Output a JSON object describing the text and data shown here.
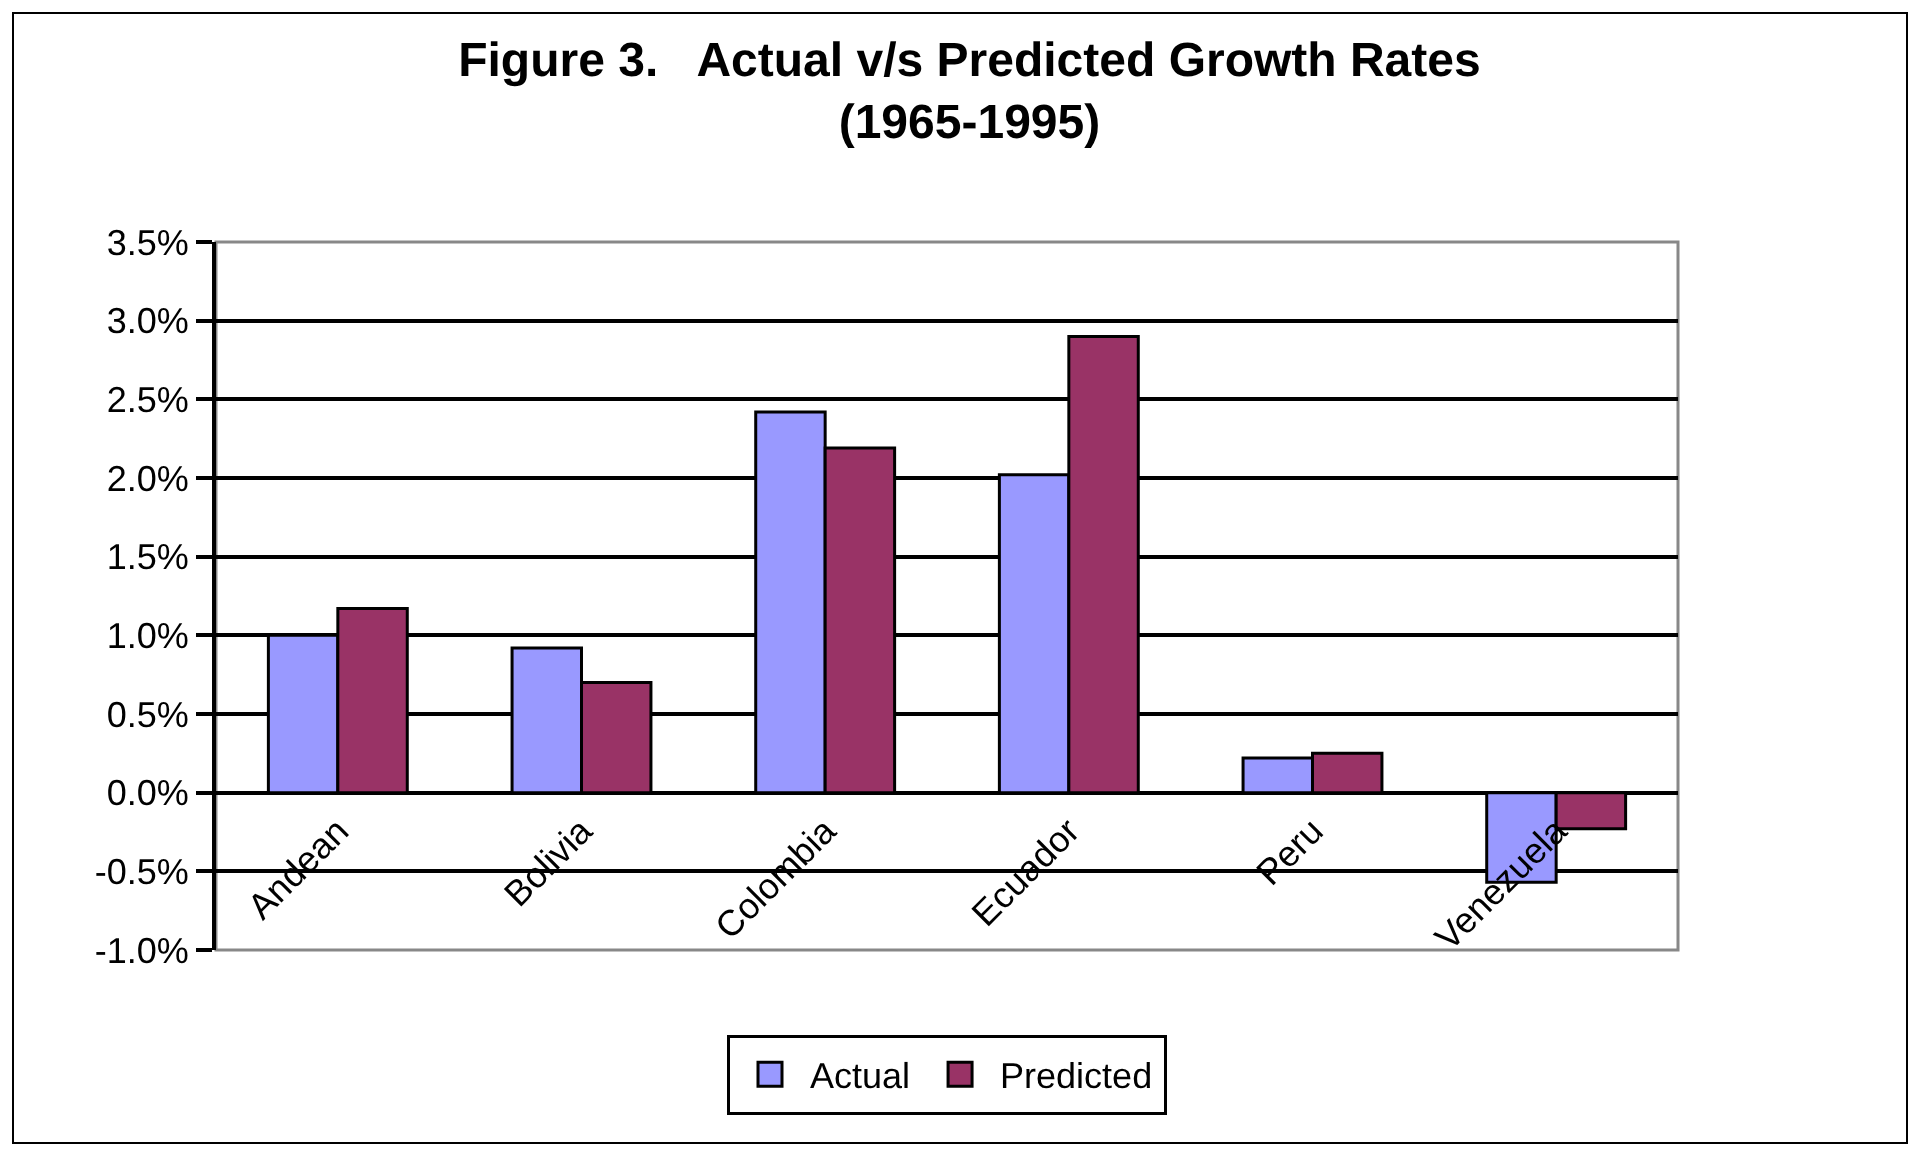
{
  "chart_data": {
    "type": "bar",
    "title": "Figure 3.   Actual v/s Predicted Growth Rates\n(1965-1995)",
    "categories": [
      "Andean",
      "Bolivia",
      "Colombia",
      "Ecuador",
      "Peru",
      "Venezuela"
    ],
    "series": [
      {
        "name": "Actual",
        "color": "#9999ff",
        "values": [
          1.0,
          0.92,
          2.42,
          2.02,
          0.22,
          -0.57
        ]
      },
      {
        "name": "Predicted",
        "color": "#993366",
        "values": [
          1.17,
          0.7,
          2.19,
          2.9,
          0.25,
          -0.23
        ]
      }
    ],
    "ylim": [
      -1.0,
      3.5
    ],
    "yticks": [
      {
        "value": -1.0,
        "label": "-1.0%"
      },
      {
        "value": -0.5,
        "label": "-0.5%"
      },
      {
        "value": 0,
        "label": "0.0%"
      },
      {
        "value": 0.5,
        "label": "0.5%"
      },
      {
        "value": 1.0,
        "label": "1.0%"
      },
      {
        "value": 1.5,
        "label": "1.5%"
      },
      {
        "value": 2.0,
        "label": "2.0%"
      },
      {
        "value": 2.5,
        "label": "2.5%"
      },
      {
        "value": 3.0,
        "label": "3.0%"
      },
      {
        "value": 3.5,
        "label": "3.5%"
      }
    ],
    "grid": "y",
    "legend": "bottom"
  }
}
